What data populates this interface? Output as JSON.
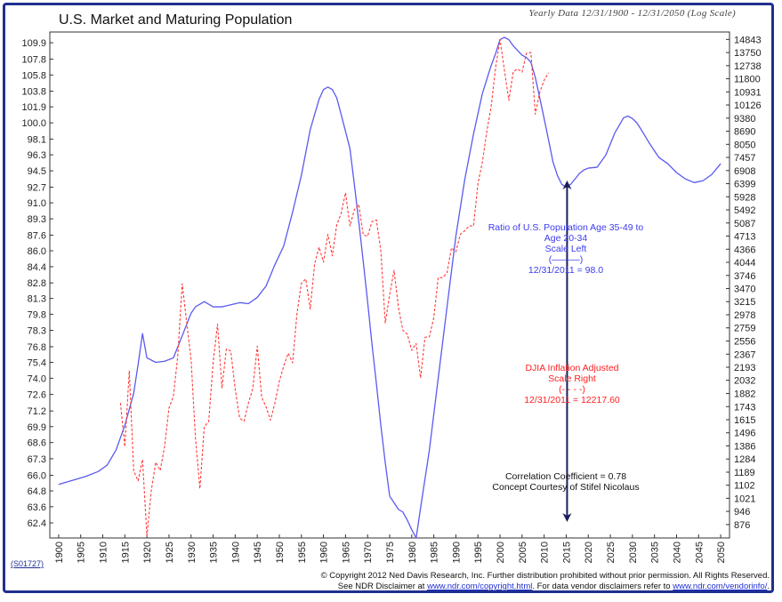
{
  "chart_header": {
    "title": "U.S. Market and Maturing Population",
    "subtitle": "Yearly Data 12/31/1900 - 12/31/2050 (Log Scale)"
  },
  "annotations": {
    "population_label": [
      "Ratio of U.S. Population Age 35-49 to Age 20-34",
      "Scale Left",
      "(———)",
      "12/31/2011 = 98.0"
    ],
    "djia_label": [
      "DJIA Inflation Adjusted",
      "Scale Right",
      "(- - - -)",
      "12/31/2011 = 12217.60"
    ],
    "correlation": "Correlation Coefficient = 0.78",
    "concept": "Concept Courtesy of Stifel Nicolaus"
  },
  "footer": {
    "code": "(S01727)",
    "line1": "© Copyright 2012 Ned Davis Research, Inc.  Further distribution prohibited without prior permission.  All Rights Reserved.",
    "line2_prefix": "See NDR Disclaimer at ",
    "line2_link1": "www.ndr.com/copyright.html",
    "line2_mid": ". For data vendor disclaimers refer to ",
    "line2_link2": "www.ndr.com/vendorinfo/",
    "line2_suffix": "."
  },
  "colors": {
    "population": "#5a5af0",
    "djia": "#ff3b3b",
    "arrow": "#1a1f5a",
    "frame": "#1f2f8f"
  },
  "chart_data": {
    "type": "line",
    "x_range": [
      1898,
      2052
    ],
    "x_ticks": [
      1900,
      1905,
      1910,
      1915,
      1920,
      1925,
      1930,
      1935,
      1940,
      1945,
      1950,
      1955,
      1960,
      1965,
      1970,
      1975,
      1980,
      1985,
      1990,
      1995,
      2000,
      2005,
      2010,
      2015,
      2020,
      2025,
      2030,
      2035,
      2040,
      2045,
      2050
    ],
    "left_axis": {
      "scale": "log",
      "range": [
        61.3,
        111.3
      ],
      "ticks": [
        "109.9",
        "107.8",
        "105.8",
        "103.8",
        "101.9",
        "100.0",
        "98.1",
        "96.3",
        "94.5",
        "92.7",
        "91.0",
        "89.3",
        "87.6",
        "86.0",
        "84.4",
        "82.8",
        "81.3",
        "79.8",
        "78.3",
        "76.8",
        "75.4",
        "74.0",
        "72.6",
        "71.2",
        "69.9",
        "68.6",
        "67.3",
        "66.0",
        "64.8",
        "63.6",
        "62.4"
      ]
    },
    "right_axis": {
      "scale": "log",
      "range": [
        810,
        15500
      ],
      "ticks": [
        "14843",
        "13750",
        "12738",
        "11800",
        "10931",
        "10126",
        "9380",
        "8690",
        "8050",
        "7457",
        "6908",
        "6399",
        "5928",
        "5492",
        "5087",
        "4713",
        "4366",
        "4044",
        "3746",
        "3470",
        "3215",
        "2978",
        "2759",
        "2556",
        "2367",
        "2193",
        "2032",
        "1882",
        "1743",
        "1615",
        "1496",
        "1386",
        "1284",
        "1189",
        "1102",
        "1021",
        "946",
        "876"
      ]
    },
    "series": [
      {
        "name": "Ratio of U.S. Population Age 35-49 to Age 20-34",
        "axis": "left",
        "style": "solid",
        "x": [
          1900,
          1903,
          1906,
          1909,
          1911,
          1913,
          1915,
          1917,
          1918,
          1919,
          1920,
          1922,
          1924,
          1926,
          1928,
          1930,
          1931,
          1933,
          1935,
          1937,
          1939,
          1941,
          1943,
          1945,
          1947,
          1949,
          1951,
          1953,
          1955,
          1957,
          1959,
          1960,
          1961,
          1962,
          1963,
          1964,
          1965,
          1966,
          1967,
          1968,
          1969,
          1970,
          1971,
          1972,
          1973,
          1974,
          1975,
          1976,
          1977,
          1978,
          1979,
          1980,
          1981,
          1982,
          1984,
          1986,
          1988,
          1990,
          1992,
          1994,
          1996,
          1998,
          1999,
          2000,
          2001,
          2002,
          2003,
          2004,
          2005,
          2006,
          2007,
          2008,
          2009,
          2010,
          2011,
          2012,
          2013,
          2014,
          2015,
          2016,
          2017,
          2018,
          2019,
          2020,
          2022,
          2024,
          2026,
          2028,
          2029,
          2030,
          2031,
          2032,
          2034,
          2036,
          2038,
          2040,
          2042,
          2044,
          2046,
          2048,
          2050
        ],
        "y": [
          65.3,
          65.6,
          65.9,
          66.3,
          66.8,
          68.0,
          70.0,
          72.7,
          75.2,
          78.0,
          75.8,
          75.4,
          75.5,
          75.8,
          77.8,
          79.9,
          80.5,
          81.0,
          80.5,
          80.5,
          80.7,
          80.9,
          80.8,
          81.4,
          82.5,
          84.6,
          86.5,
          90.0,
          94.0,
          99.2,
          102.8,
          104.0,
          104.3,
          104.0,
          103.0,
          101.0,
          99.0,
          97.0,
          93.0,
          89.0,
          85.0,
          81.0,
          77.0,
          73.5,
          70.0,
          67.0,
          64.4,
          63.9,
          63.4,
          63.2,
          62.6,
          61.9,
          61.3,
          63.5,
          68.0,
          74.0,
          80.5,
          87.5,
          93.5,
          98.7,
          103.5,
          107.0,
          108.5,
          110.3,
          110.6,
          110.3,
          109.5,
          108.9,
          108.3,
          108.0,
          107.4,
          105.5,
          103.0,
          100.5,
          98.0,
          95.5,
          94.0,
          93.0,
          92.7,
          93.0,
          93.6,
          94.2,
          94.6,
          94.8,
          94.9,
          96.3,
          98.8,
          100.6,
          100.8,
          100.5,
          100.0,
          99.2,
          97.5,
          96.0,
          95.3,
          94.3,
          93.6,
          93.2,
          93.4,
          94.1,
          95.3
        ]
      },
      {
        "name": "DJIA Inflation Adjusted",
        "axis": "right",
        "style": "dashed",
        "x": [
          1914,
          1915,
          1916,
          1917,
          1918,
          1919,
          1920,
          1921,
          1922,
          1923,
          1924,
          1925,
          1926,
          1927,
          1928,
          1929,
          1930,
          1931,
          1932,
          1933,
          1934,
          1935,
          1936,
          1937,
          1938,
          1939,
          1940,
          1941,
          1942,
          1943,
          1944,
          1945,
          1946,
          1947,
          1948,
          1949,
          1950,
          1951,
          1952,
          1953,
          1954,
          1955,
          1956,
          1957,
          1958,
          1959,
          1960,
          1961,
          1962,
          1963,
          1964,
          1965,
          1966,
          1967,
          1968,
          1969,
          1970,
          1971,
          1972,
          1973,
          1974,
          1975,
          1976,
          1977,
          1978,
          1979,
          1980,
          1981,
          1982,
          1983,
          1984,
          1985,
          1986,
          1987,
          1988,
          1989,
          1990,
          1991,
          1992,
          1993,
          1994,
          1995,
          1996,
          1997,
          1998,
          1999,
          2000,
          2001,
          2002,
          2003,
          2004,
          2005,
          2006,
          2007,
          2008,
          2009,
          2010,
          2011
        ],
        "y": [
          1780,
          1380,
          2150,
          1200,
          1130,
          1280,
          820,
          1070,
          1260,
          1200,
          1380,
          1730,
          1850,
          2350,
          3570,
          2850,
          2300,
          1450,
          1080,
          1550,
          1600,
          2250,
          2820,
          1940,
          2440,
          2410,
          1930,
          1630,
          1600,
          1780,
          1940,
          2480,
          1840,
          1740,
          1610,
          1780,
          2020,
          2210,
          2380,
          2250,
          3000,
          3580,
          3670,
          3080,
          4010,
          4420,
          4050,
          4760,
          4200,
          5030,
          5380,
          6070,
          5000,
          5500,
          5670,
          4750,
          4710,
          5130,
          5180,
          4320,
          2840,
          3350,
          3860,
          3100,
          2720,
          2660,
          2420,
          2520,
          2060,
          2610,
          2620,
          2930,
          3700,
          3700,
          3810,
          4400,
          4300,
          4760,
          4860,
          5000,
          5000,
          6400,
          7250,
          8660,
          10040,
          12600,
          14843,
          12400,
          10400,
          12300,
          12500,
          12270,
          13700,
          13750,
          9600,
          10900,
          11700,
          12218
        ]
      }
    ]
  }
}
